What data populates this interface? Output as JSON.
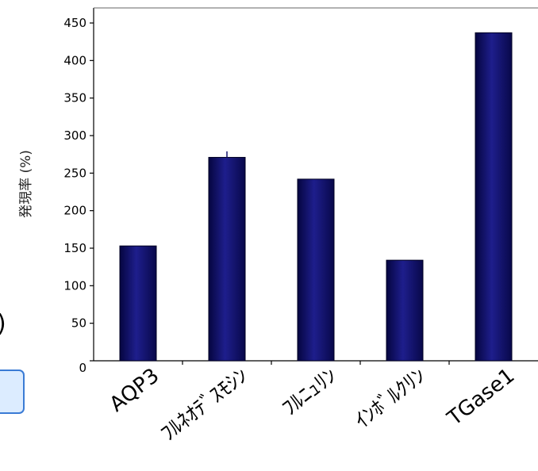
{
  "chart_data": {
    "type": "bar",
    "ylabel": "発現率 (%)",
    "categories": [
      "AQP3",
      "ﾌﾙﾈｵﾃﾞｽﾓｼﾝ",
      "ﾌﾙﾆｭﾘﾝ",
      "ｲﾝﾎﾞﾙｸﾘﾝ",
      "TGase1"
    ],
    "values": [
      153,
      271,
      242,
      134,
      437
    ],
    "errors": [
      0,
      8,
      0,
      0,
      0
    ],
    "ylim": [
      0,
      450
    ],
    "yticks": [
      0,
      50,
      100,
      150,
      200,
      250,
      300,
      350,
      400,
      450
    ],
    "grid": false,
    "bar_color": "#14146e"
  },
  "left_fragment": {
    "text": ")",
    "box_border_color": "#3a7bd5",
    "box_fill_color": "#dcecff"
  }
}
